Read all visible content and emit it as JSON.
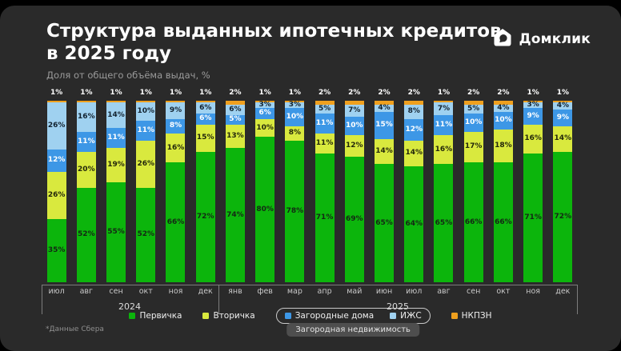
{
  "header": {
    "title_line1": "Структура выданных ипотечных кредитов",
    "title_line2": "в 2025 году",
    "subtitle": "Доля от общего объёма выдач, %",
    "brand_name": "Домклик"
  },
  "footnote": "*Данные Сбера",
  "chart_data": {
    "type": "bar",
    "stacked": true,
    "unit": "%",
    "ylim": [
      0,
      100
    ],
    "grid": false,
    "legend_position": "bottom",
    "categories": [
      "июл",
      "авг",
      "сен",
      "окт",
      "ноя",
      "дек",
      "янв",
      "фев",
      "мар",
      "апр",
      "май",
      "июн",
      "июл",
      "авг",
      "сен",
      "окт",
      "ноя",
      "дек"
    ],
    "year_groups": [
      {
        "label": "2024",
        "start": 0,
        "count": 6
      },
      {
        "label": "2025",
        "start": 6,
        "count": 12
      }
    ],
    "series": [
      {
        "name": "Первичка",
        "color": "#0CB50C",
        "label_color": "#142814",
        "values": [
          35,
          52,
          55,
          52,
          66,
          72,
          74,
          80,
          78,
          71,
          69,
          65,
          64,
          65,
          66,
          66,
          71,
          72
        ]
      },
      {
        "name": "Вторичка",
        "color": "#D9E93E",
        "label_color": "#23270b",
        "values": [
          26,
          20,
          19,
          26,
          16,
          15,
          13,
          10,
          8,
          11,
          12,
          14,
          14,
          16,
          17,
          18,
          16,
          14
        ]
      },
      {
        "name": "Загородные дома",
        "color": "#3D97E6",
        "label_color": "#ffffff",
        "values": [
          12,
          11,
          11,
          11,
          8,
          6,
          5,
          6,
          10,
          11,
          10,
          15,
          12,
          11,
          10,
          10,
          9,
          9
        ]
      },
      {
        "name": "ИЖС",
        "color": "#9FD1F0",
        "label_color": "#12222f",
        "values": [
          26,
          16,
          14,
          10,
          9,
          6,
          6,
          3,
          3,
          5,
          7,
          4,
          8,
          7,
          5,
          4,
          3,
          4
        ]
      },
      {
        "name": "НКПЗН",
        "color": "#EFA01E",
        "label_color": "#ffffff",
        "label_position": "above",
        "values": [
          1,
          1,
          1,
          1,
          1,
          1,
          2,
          1,
          1,
          2,
          2,
          2,
          2,
          1,
          2,
          2,
          1,
          1
        ]
      }
    ],
    "legend_group_label": "Загородная недвижимость"
  }
}
